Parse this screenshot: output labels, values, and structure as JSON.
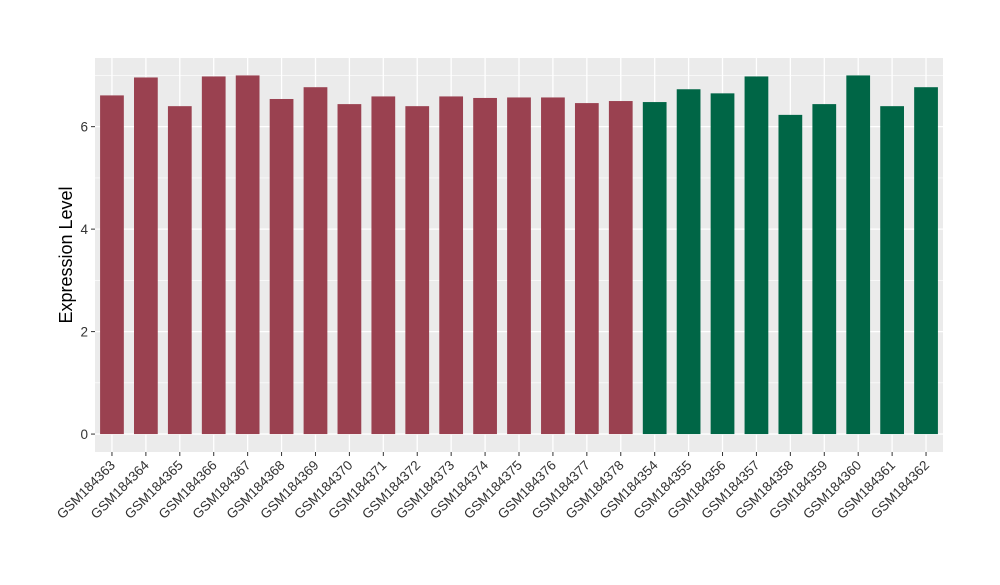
{
  "chart_data": {
    "type": "bar",
    "title": "",
    "xlabel": "",
    "ylabel": "Expression Level",
    "ylim": [
      -0.35,
      7.34
    ],
    "yticks": [
      0,
      2,
      4,
      6
    ],
    "grid": true,
    "categories": [
      "GSM184363",
      "GSM184364",
      "GSM184365",
      "GSM184366",
      "GSM184367",
      "GSM184368",
      "GSM184369",
      "GSM184370",
      "GSM184371",
      "GSM184372",
      "GSM184373",
      "GSM184374",
      "GSM184375",
      "GSM184376",
      "GSM184377",
      "GSM184378",
      "GSM184354",
      "GSM184355",
      "GSM184356",
      "GSM184357",
      "GSM184358",
      "GSM184359",
      "GSM184360",
      "GSM184361",
      "GSM184362"
    ],
    "values": [
      6.61,
      6.96,
      6.4,
      6.98,
      7.0,
      6.54,
      6.77,
      6.44,
      6.59,
      6.4,
      6.59,
      6.56,
      6.57,
      6.57,
      6.46,
      6.5,
      6.48,
      6.73,
      6.65,
      6.98,
      6.23,
      6.44,
      7.0,
      6.4,
      6.77
    ],
    "groups": [
      "a",
      "a",
      "a",
      "a",
      "a",
      "a",
      "a",
      "a",
      "a",
      "a",
      "a",
      "a",
      "a",
      "a",
      "a",
      "a",
      "b",
      "b",
      "b",
      "b",
      "b",
      "b",
      "b",
      "b",
      "b"
    ],
    "group_colors": {
      "a": "#9A4150",
      "b": "#006646"
    },
    "panel_background": "#EBEBEB"
  }
}
